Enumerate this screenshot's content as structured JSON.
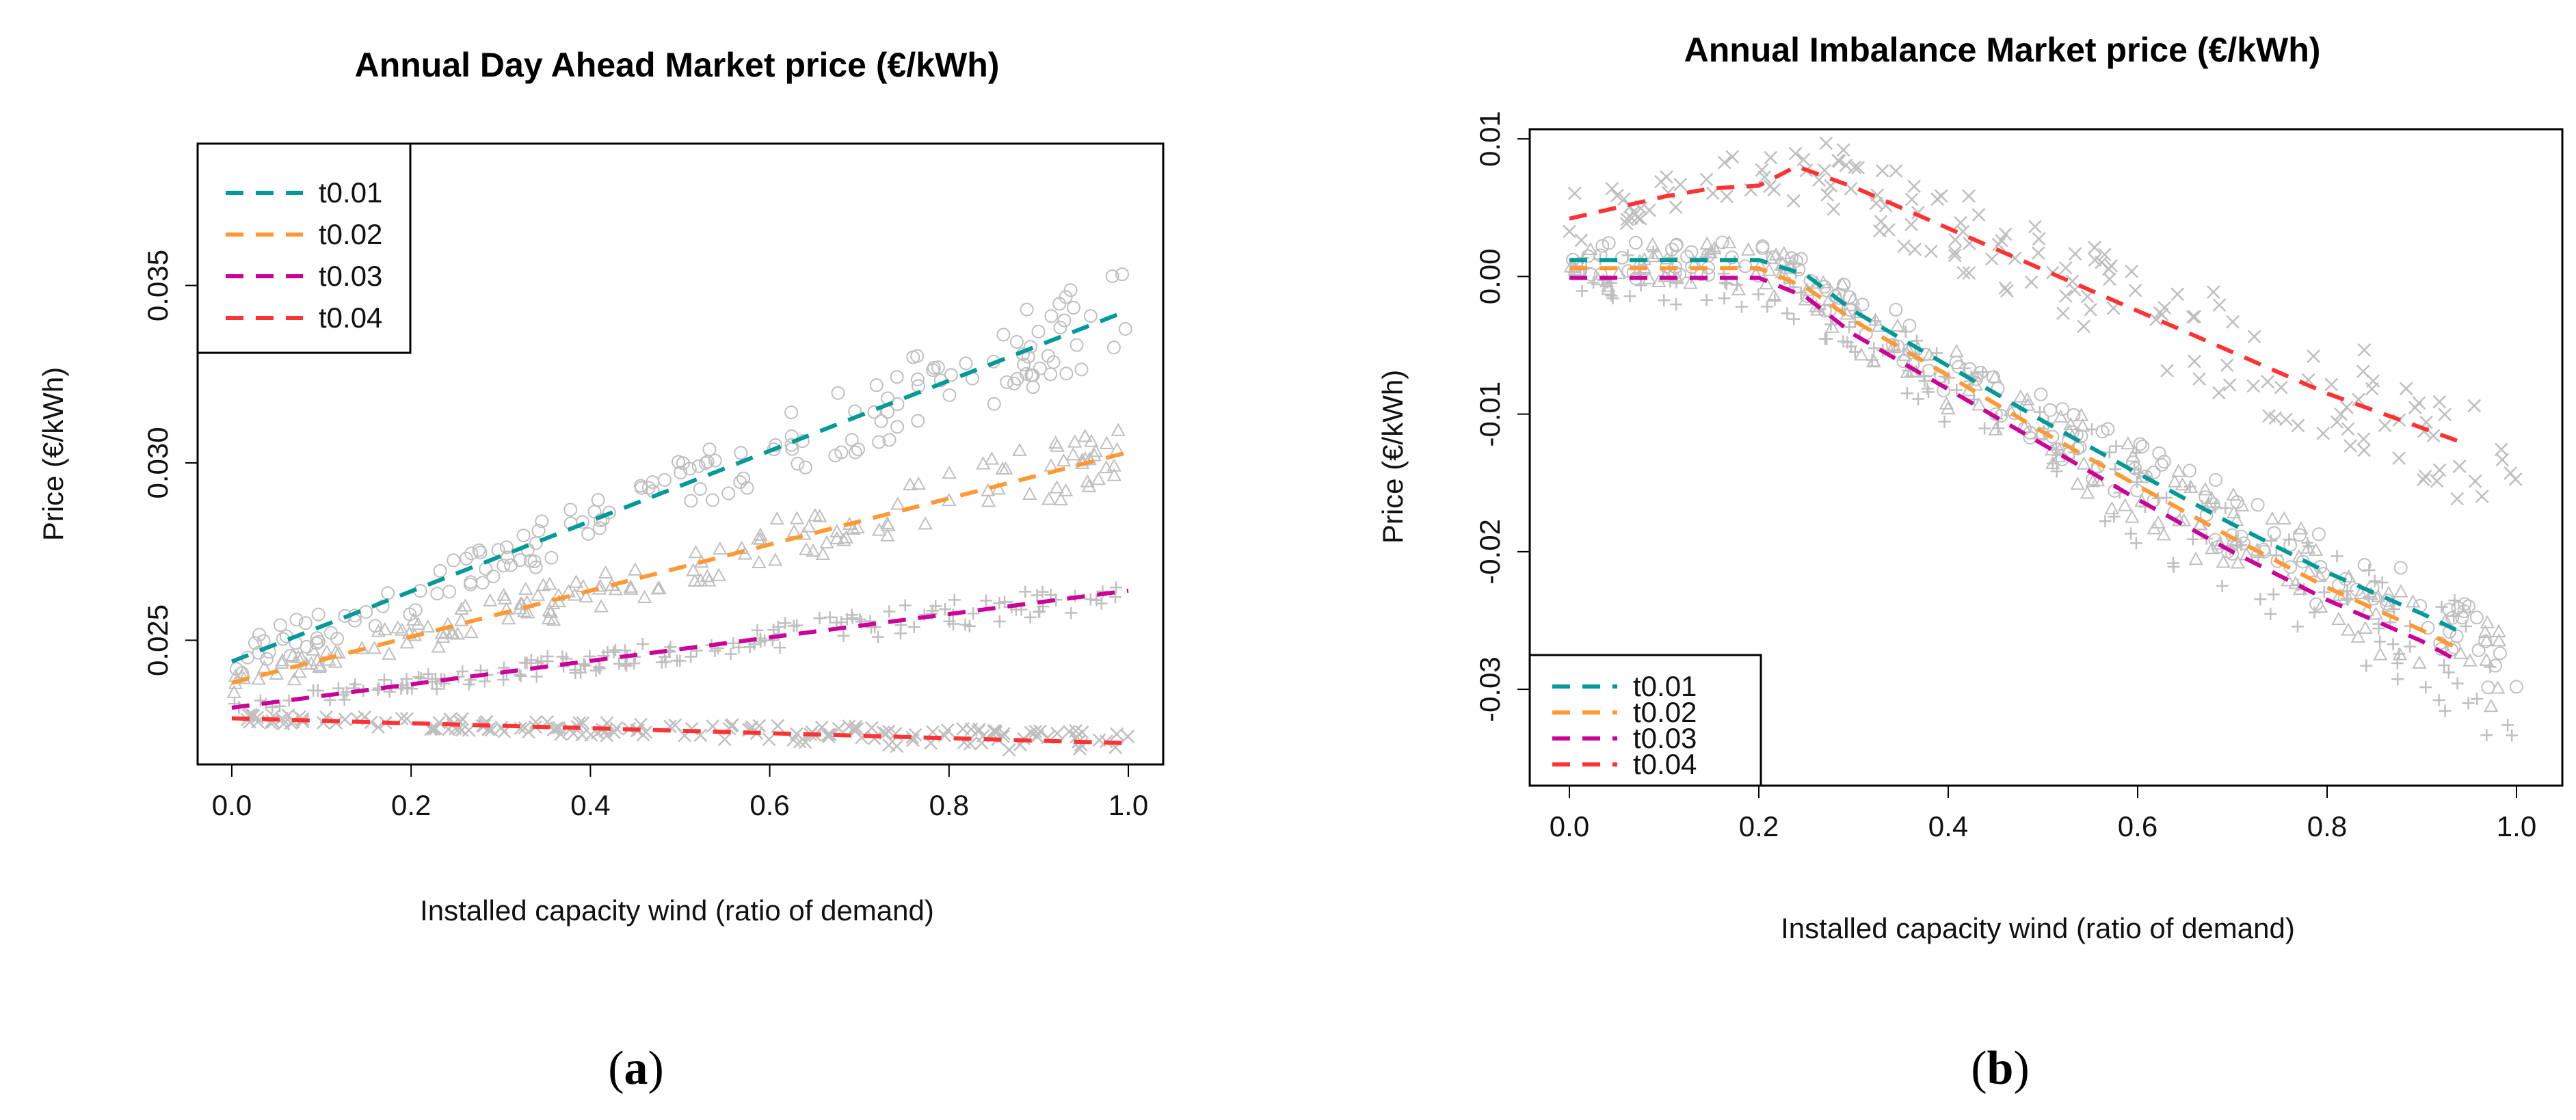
{
  "colors": {
    "t0.01": "#009999",
    "t0.02": "#ff9933",
    "t0.03": "#cc0099",
    "t0.04": "#ff3333",
    "scatter": "#bfbfbf"
  },
  "chart_data": [
    {
      "type": "scatter",
      "panel_label": "a",
      "title": "Annual Day Ahead Market price (€/kWh)",
      "xlabel": "Installed capacity wind (ratio of demand)",
      "ylabel": "Price (€/kWh)",
      "xlim": [
        0,
        1
      ],
      "ylim": [
        0.0215,
        0.039
      ],
      "xticks": [
        0.0,
        0.2,
        0.4,
        0.6,
        0.8,
        1.0
      ],
      "xtick_labels": [
        "0.0",
        "0.2",
        "0.4",
        "0.6",
        "0.8",
        "1.0"
      ],
      "yticks": [
        0.025,
        0.03,
        0.035
      ],
      "ytick_labels": [
        "0.025",
        "0.030",
        "0.035"
      ],
      "legend_position": "top-left",
      "series": [
        {
          "name": "t0.01",
          "marker": "circle",
          "x": [
            0,
            1
          ],
          "trend": [
            0.0244,
            0.0343
          ],
          "spread": 0.0008
        },
        {
          "name": "t0.02",
          "marker": "triangle",
          "x": [
            0,
            1
          ],
          "trend": [
            0.0238,
            0.0303
          ],
          "spread": 0.0006
        },
        {
          "name": "t0.03",
          "marker": "plus",
          "x": [
            0,
            1
          ],
          "trend": [
            0.0231,
            0.0264
          ],
          "spread": 0.0003
        },
        {
          "name": "t0.04",
          "marker": "cross",
          "x": [
            0,
            1
          ],
          "trend": [
            0.0228,
            0.0221
          ],
          "spread": 0.0002
        }
      ]
    },
    {
      "type": "scatter",
      "panel_label": "b",
      "title": "Annual Imbalance Market price (€/kWh)",
      "xlabel": "Installed capacity wind (ratio of demand)",
      "ylabel": "Price (€/kWh)",
      "xlim": [
        0,
        1
      ],
      "ylim": [
        -0.037,
        0.0107
      ],
      "xticks": [
        0.0,
        0.2,
        0.4,
        0.6,
        0.8,
        1.0
      ],
      "xtick_labels": [
        "0.0",
        "0.2",
        "0.4",
        "0.6",
        "0.8",
        "1.0"
      ],
      "yticks": [
        -0.03,
        -0.02,
        -0.01,
        0.0,
        0.01
      ],
      "ytick_labels": [
        "-0.03",
        "-0.02",
        "-0.01",
        "0.00",
        "0.01"
      ],
      "legend_position": "bottom-left",
      "series": [
        {
          "name": "t0.01",
          "marker": "circle",
          "x": [
            0,
            0.2,
            0.25,
            0.3,
            0.4,
            0.5,
            0.6,
            0.7,
            0.8,
            0.9,
            0.94
          ],
          "trend": [
            0.0012,
            0.0012,
            0.0001,
            -0.0025,
            -0.0065,
            -0.0105,
            -0.0143,
            -0.018,
            -0.0215,
            -0.0245,
            -0.0258
          ],
          "spread": 0.002
        },
        {
          "name": "t0.02",
          "marker": "triangle",
          "x": [
            0,
            0.2,
            0.25,
            0.3,
            0.4,
            0.5,
            0.6,
            0.7,
            0.8,
            0.9,
            0.94
          ],
          "trend": [
            0.0006,
            0.0006,
            -0.0008,
            -0.0032,
            -0.0072,
            -0.0113,
            -0.0152,
            -0.019,
            -0.0226,
            -0.0257,
            -0.0271
          ],
          "spread": 0.0025
        },
        {
          "name": "t0.03",
          "marker": "plus",
          "x": [
            0,
            0.2,
            0.25,
            0.3,
            0.4,
            0.5,
            0.6,
            0.7,
            0.8,
            0.9,
            0.94
          ],
          "trend": [
            -0.0001,
            -0.0001,
            -0.0015,
            -0.0042,
            -0.0082,
            -0.0122,
            -0.0162,
            -0.02,
            -0.0235,
            -0.0265,
            -0.028
          ],
          "spread": 0.0028
        },
        {
          "name": "t0.04",
          "marker": "cross",
          "x": [
            0,
            0.05,
            0.1,
            0.15,
            0.2,
            0.24,
            0.3,
            0.4,
            0.5,
            0.6,
            0.7,
            0.8,
            0.9,
            0.94
          ],
          "trend": [
            0.0042,
            0.005,
            0.0058,
            0.0064,
            0.0066,
            0.008,
            0.0065,
            0.0035,
            0.0005,
            -0.0025,
            -0.0055,
            -0.0085,
            -0.011,
            -0.012
          ],
          "spread": 0.003
        }
      ]
    }
  ]
}
